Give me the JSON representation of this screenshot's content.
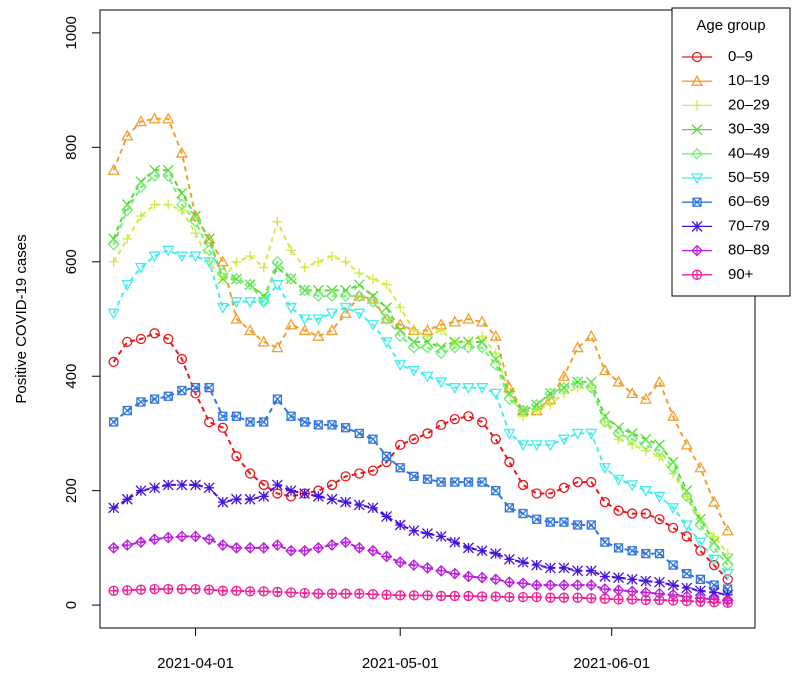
{
  "chart_data": {
    "type": "line",
    "y_label": "Positive COVID-19 cases",
    "legend_title": "Age group",
    "legend": "topright",
    "x": [
      "2021-03-20",
      "2021-03-22",
      "2021-03-24",
      "2021-03-26",
      "2021-03-28",
      "2021-03-30",
      "2021-04-01",
      "2021-04-03",
      "2021-04-05",
      "2021-04-07",
      "2021-04-09",
      "2021-04-11",
      "2021-04-13",
      "2021-04-15",
      "2021-04-17",
      "2021-04-19",
      "2021-04-21",
      "2021-04-23",
      "2021-04-25",
      "2021-04-27",
      "2021-04-29",
      "2021-05-01",
      "2021-05-03",
      "2021-05-05",
      "2021-05-07",
      "2021-05-09",
      "2021-05-11",
      "2021-05-13",
      "2021-05-15",
      "2021-05-17",
      "2021-05-19",
      "2021-05-21",
      "2021-05-23",
      "2021-05-25",
      "2021-05-27",
      "2021-05-29",
      "2021-05-31",
      "2021-06-02",
      "2021-06-04",
      "2021-06-06",
      "2021-06-08",
      "2021-06-10",
      "2021-06-12",
      "2021-06-14",
      "2021-06-16",
      "2021-06-18"
    ],
    "xlim": [
      "2021-03-18",
      "2021-06-22"
    ],
    "xticks": [
      "2021-04-01",
      "2021-05-01",
      "2021-06-01"
    ],
    "ylim": [
      -40,
      1040
    ],
    "yticks": [
      0,
      200,
      400,
      600,
      800,
      1000
    ],
    "series": [
      {
        "name": "0–9",
        "color": "#e8181c",
        "marker": "circle",
        "values": [
          425,
          460,
          465,
          475,
          465,
          430,
          370,
          320,
          310,
          260,
          230,
          210,
          195,
          190,
          195,
          200,
          210,
          225,
          230,
          235,
          250,
          280,
          290,
          300,
          315,
          325,
          330,
          320,
          290,
          250,
          210,
          195,
          195,
          205,
          215,
          215,
          180,
          165,
          160,
          160,
          150,
          135,
          120,
          95,
          70,
          45
        ]
      },
      {
        "name": "10–19",
        "color": "#f0a030",
        "marker": "triangle",
        "values": [
          760,
          820,
          845,
          850,
          850,
          790,
          680,
          640,
          600,
          500,
          480,
          460,
          450,
          490,
          480,
          470,
          480,
          510,
          540,
          535,
          500,
          490,
          480,
          480,
          490,
          495,
          500,
          495,
          470,
          380,
          340,
          340,
          360,
          400,
          450,
          470,
          410,
          390,
          370,
          360,
          390,
          330,
          280,
          240,
          180,
          130
        ]
      },
      {
        "name": "20–29",
        "color": "#ccee44",
        "marker": "plus",
        "values": [
          600,
          640,
          680,
          700,
          700,
          690,
          650,
          600,
          570,
          600,
          610,
          590,
          670,
          620,
          590,
          600,
          610,
          600,
          580,
          570,
          560,
          520,
          480,
          470,
          480,
          460,
          460,
          470,
          440,
          370,
          330,
          340,
          350,
          370,
          380,
          380,
          320,
          290,
          280,
          270,
          260,
          230,
          190,
          150,
          120,
          90
        ]
      },
      {
        "name": "30–39",
        "color": "#55dd33",
        "marker": "cross",
        "values": [
          640,
          700,
          740,
          760,
          760,
          720,
          680,
          640,
          570,
          570,
          560,
          540,
          590,
          570,
          550,
          550,
          550,
          550,
          560,
          540,
          520,
          480,
          460,
          460,
          450,
          460,
          460,
          460,
          430,
          370,
          340,
          350,
          370,
          380,
          390,
          390,
          330,
          310,
          300,
          290,
          280,
          250,
          200,
          150,
          110,
          80
        ]
      },
      {
        "name": "40–49",
        "color": "#77ee77",
        "marker": "diamond",
        "values": [
          630,
          690,
          730,
          750,
          750,
          700,
          670,
          620,
          580,
          570,
          560,
          530,
          600,
          570,
          550,
          540,
          540,
          540,
          540,
          530,
          500,
          470,
          450,
          450,
          440,
          450,
          450,
          450,
          420,
          360,
          340,
          350,
          370,
          380,
          390,
          380,
          320,
          300,
          290,
          280,
          270,
          240,
          190,
          140,
          100,
          70
        ]
      },
      {
        "name": "50–59",
        "color": "#44eeee",
        "marker": "triangle-down",
        "values": [
          510,
          560,
          590,
          610,
          620,
          610,
          610,
          600,
          520,
          530,
          530,
          530,
          560,
          520,
          500,
          500,
          510,
          520,
          510,
          490,
          460,
          420,
          410,
          400,
          390,
          380,
          380,
          380,
          370,
          300,
          280,
          280,
          280,
          290,
          300,
          300,
          240,
          220,
          210,
          200,
          190,
          170,
          140,
          110,
          80,
          55
        ]
      },
      {
        "name": "60–69",
        "color": "#3377dd",
        "marker": "square-cross",
        "values": [
          320,
          340,
          355,
          360,
          365,
          375,
          380,
          380,
          330,
          330,
          320,
          320,
          360,
          330,
          320,
          315,
          315,
          310,
          300,
          290,
          260,
          240,
          225,
          220,
          215,
          215,
          215,
          215,
          200,
          170,
          160,
          150,
          145,
          145,
          140,
          140,
          110,
          100,
          95,
          90,
          90,
          70,
          55,
          45,
          35,
          28
        ]
      },
      {
        "name": "70–79",
        "color": "#4411dd",
        "marker": "asterisk",
        "values": [
          170,
          185,
          200,
          205,
          210,
          210,
          210,
          205,
          180,
          185,
          185,
          190,
          210,
          200,
          195,
          190,
          185,
          180,
          175,
          170,
          155,
          140,
          130,
          125,
          120,
          110,
          100,
          95,
          90,
          80,
          75,
          70,
          65,
          65,
          60,
          60,
          50,
          48,
          45,
          42,
          40,
          35,
          30,
          25,
          22,
          18
        ]
      },
      {
        "name": "80–89",
        "color": "#bb22dd",
        "marker": "diamond-plus",
        "values": [
          100,
          105,
          110,
          115,
          118,
          120,
          120,
          115,
          105,
          100,
          100,
          100,
          105,
          95,
          95,
          100,
          105,
          110,
          100,
          95,
          85,
          75,
          70,
          65,
          60,
          55,
          50,
          48,
          45,
          40,
          38,
          35,
          35,
          35,
          35,
          35,
          28,
          26,
          24,
          22,
          20,
          18,
          15,
          12,
          10,
          8
        ]
      },
      {
        "name": "90+",
        "color": "#ee2299",
        "marker": "circle-plus",
        "values": [
          25,
          26,
          27,
          28,
          28,
          28,
          28,
          27,
          25,
          25,
          24,
          24,
          23,
          22,
          21,
          20,
          20,
          20,
          20,
          19,
          18,
          17,
          17,
          17,
          16,
          16,
          16,
          15,
          15,
          14,
          14,
          14,
          13,
          13,
          13,
          12,
          11,
          10,
          10,
          9,
          9,
          8,
          7,
          6,
          5,
          4
        ]
      }
    ]
  }
}
